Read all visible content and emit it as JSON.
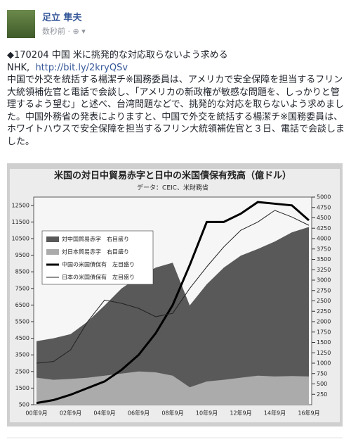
{
  "post": {
    "author": "足立 隼夫",
    "timestamp": "数秒前",
    "lines": [
      "◆170204 中国 米に挑発的な対応取らないよう求める"
    ],
    "source": "NHK,",
    "link": "http://bit.ly/2kryQSv",
    "body": "中国で外交を統括する楊潔チ※国務委員は、アメリカで安全保障を担当するフリン大統領補佐官と電話で会談し、「アメリカの新政権が敏感な問題を、しっかりと管理するよう望む」と述べ、台湾問題などで、挑発的な対応を取らないよう求めました。中国外務省の発表によりますと、中国で外交を統括する楊潔チ※国務委員は、ホワイトハウスで安全保障を担当するフリン大統領補佐官と３日、電話で会談しました。"
  },
  "chart_data": {
    "type": "area-line",
    "title": "米国の対日中貿易赤字と日中の米国債保有残高（億ドル）",
    "subtitle": "データ：CEIC、米財務省",
    "categories": [
      "00年9月",
      null,
      "02年9月",
      null,
      "04年9月",
      null,
      "06年9月",
      null,
      "08年9月",
      null,
      "10年9月",
      null,
      "12年9月",
      null,
      "14年9月",
      null,
      "16年9月"
    ],
    "series": [
      {
        "name": "対中国貿易赤字　右目盛り",
        "color": "#595959",
        "kind": "area",
        "axis": "y2",
        "values": [
          1530,
          1600,
          1700,
          2000,
          2390,
          2800,
          3080,
          3300,
          3420,
          2390,
          2900,
          3300,
          3590,
          3750,
          3930,
          4150,
          4280
        ]
      },
      {
        "name": "対日本貿易赤字　右目盛り",
        "color": "#ababab",
        "kind": "area",
        "axis": "y2",
        "values": [
          650,
          600,
          620,
          650,
          700,
          750,
          800,
          780,
          700,
          420,
          560,
          600,
          650,
          700,
          680,
          690,
          680
        ]
      },
      {
        "name": "中国の米国債保有　左目盛り",
        "color": "#000000",
        "kind": "thick",
        "values": [
          600,
          780,
          1100,
          1500,
          1900,
          2600,
          3500,
          4800,
          6500,
          8900,
          11500,
          11500,
          12000,
          12700,
          12600,
          12500,
          11600
        ]
      },
      {
        "name": "日本の米国債保有　左目盛り",
        "color": "#222222",
        "kind": "thin",
        "values": [
          3000,
          3100,
          3800,
          5500,
          6800,
          6600,
          6300,
          5800,
          6000,
          7500,
          8800,
          10000,
          11000,
          11500,
          12200,
          11800,
          11300
        ]
      }
    ],
    "ylim": [
      500,
      13000
    ],
    "yticks": [
      500,
      1500,
      2500,
      3500,
      4500,
      5500,
      6500,
      7500,
      8500,
      9500,
      10500,
      11500,
      12500
    ],
    "y2lim": [
      0,
      5000
    ],
    "y2ticks": [
      250,
      500,
      750,
      1000,
      1250,
      1500,
      1750,
      2000,
      2250,
      2500,
      2750,
      3000,
      3250,
      3500,
      3750,
      4000,
      4250,
      4500,
      4750,
      5000
    ]
  }
}
